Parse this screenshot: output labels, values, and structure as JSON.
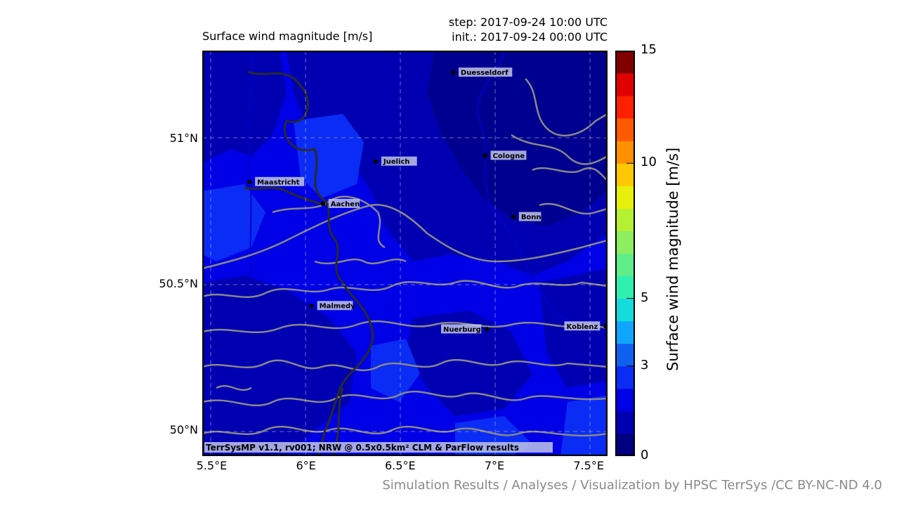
{
  "titles": {
    "left": "Surface wind magnitude [m/s]",
    "step": "step: 2017-09-24 10:00 UTC",
    "init": "init.: 2017-09-24 00:00 UTC"
  },
  "map": {
    "lon_range": [
      5.45,
      7.6
    ],
    "lat_range": [
      49.91,
      51.3
    ],
    "lat_ticks": [
      {
        "value": 51.0,
        "label": "51°N"
      },
      {
        "value": 50.5,
        "label": "50.5°N"
      },
      {
        "value": 50.0,
        "label": "50°N"
      }
    ],
    "lon_ticks": [
      {
        "value": 5.5,
        "label": "5.5°E"
      },
      {
        "value": 6.0,
        "label": "6°E"
      },
      {
        "value": 6.5,
        "label": "6.5°E"
      },
      {
        "value": 7.0,
        "label": "7°E"
      },
      {
        "value": 7.5,
        "label": "7.5°E"
      }
    ],
    "cities": [
      {
        "name": "Duesseldorf",
        "lon": 6.78,
        "lat": 51.225,
        "label_side": "right"
      },
      {
        "name": "Juelich",
        "lon": 6.37,
        "lat": 50.92,
        "label_side": "right"
      },
      {
        "name": "Cologne",
        "lon": 6.95,
        "lat": 50.94,
        "label_side": "right"
      },
      {
        "name": "Maastricht",
        "lon": 5.7,
        "lat": 50.85,
        "label_side": "right"
      },
      {
        "name": "Aachen",
        "lon": 6.09,
        "lat": 50.775,
        "label_side": "right"
      },
      {
        "name": "Bonn",
        "lon": 7.1,
        "lat": 50.73,
        "label_side": "right"
      },
      {
        "name": "Malmedy",
        "lon": 6.03,
        "lat": 50.425,
        "label_side": "right"
      },
      {
        "name": "Nuerburg",
        "lon": 6.96,
        "lat": 50.345,
        "label_side": "left"
      },
      {
        "name": "Koblenz",
        "lon": 7.59,
        "lat": 50.355,
        "label_side": "left"
      }
    ],
    "footer": "TerrSysMP v1.1, rv001; NRW @ 0.5x0.5km² CLM & ParFlow results"
  },
  "colorbar": {
    "label": "Surface wind magnitude [m/s]",
    "bounds": [
      0,
      1,
      2,
      2.5,
      3,
      3.5,
      4,
      5,
      5.5,
      6,
      7,
      8,
      9,
      10,
      11,
      12,
      13,
      14,
      15
    ],
    "colors": [
      "#000080",
      "#0000b3",
      "#0000e6",
      "#0a2cf5",
      "#1060f0",
      "#10a6ff",
      "#14dcdc",
      "#2ff0b0",
      "#60ee8a",
      "#8cee60",
      "#b6f032",
      "#e6f00a",
      "#ffc800",
      "#ff9000",
      "#ff5a00",
      "#ff2000",
      "#e00000",
      "#800000"
    ],
    "ticks": [
      {
        "value": 0,
        "label": "0"
      },
      {
        "value": 3,
        "label": "3"
      },
      {
        "value": 5,
        "label": "5"
      },
      {
        "value": 10,
        "label": "10"
      },
      {
        "value": 15,
        "label": "15"
      }
    ]
  },
  "credit": "Simulation Results / Analyses / Visualization by HPSC TerrSys /CC BY-NC-ND 4.0"
}
